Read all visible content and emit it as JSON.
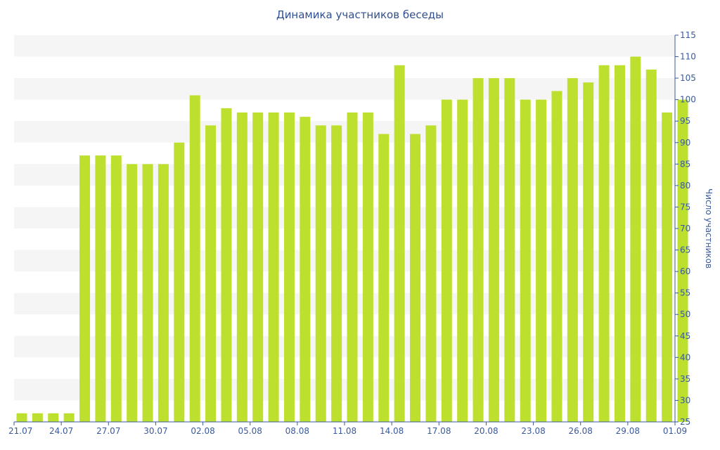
{
  "chart_data": {
    "type": "bar",
    "title": "Динамика участников беседы",
    "xlabel": "",
    "ylabel": "Число участников",
    "ylim": [
      25,
      115
    ],
    "y_ticks": [
      25,
      30,
      35,
      40,
      45,
      50,
      55,
      60,
      65,
      70,
      75,
      80,
      85,
      90,
      95,
      100,
      105,
      110,
      115
    ],
    "y_axis_side": "right",
    "grid": "alternating horizontal bands",
    "bar_color": "#bde02f",
    "band_color": "#f5f5f5",
    "text_color": "#3a5a9a",
    "categories": [
      "21.07",
      "22.07",
      "23.07",
      "24.07",
      "25.07",
      "26.07",
      "27.07",
      "28.07",
      "29.07",
      "30.07",
      "31.07",
      "01.08",
      "02.08",
      "03.08",
      "04.08",
      "05.08",
      "06.08",
      "07.08",
      "08.08",
      "09.08",
      "10.08",
      "11.08",
      "12.08",
      "13.08",
      "14.08",
      "15.08",
      "16.08",
      "17.08",
      "18.08",
      "19.08",
      "20.08",
      "21.08",
      "22.08",
      "23.08",
      "24.08",
      "25.08",
      "26.08",
      "27.08",
      "28.08",
      "29.08",
      "30.08",
      "31.08",
      "01.09"
    ],
    "x_tick_labels": [
      "21.07",
      "24.07",
      "27.07",
      "30.07",
      "02.08",
      "05.08",
      "08.08",
      "11.08",
      "14.08",
      "17.08",
      "20.08",
      "23.08",
      "26.08",
      "29.08",
      "01.09"
    ],
    "values": [
      27,
      27,
      27,
      27,
      87,
      87,
      87,
      85,
      85,
      85,
      90,
      101,
      94,
      98,
      97,
      97,
      97,
      97,
      96,
      94,
      94,
      97,
      97,
      92,
      108,
      92,
      94,
      100,
      100,
      105,
      105,
      105,
      100,
      100,
      102,
      105,
      104,
      108,
      108,
      110,
      107,
      97,
      100
    ]
  }
}
